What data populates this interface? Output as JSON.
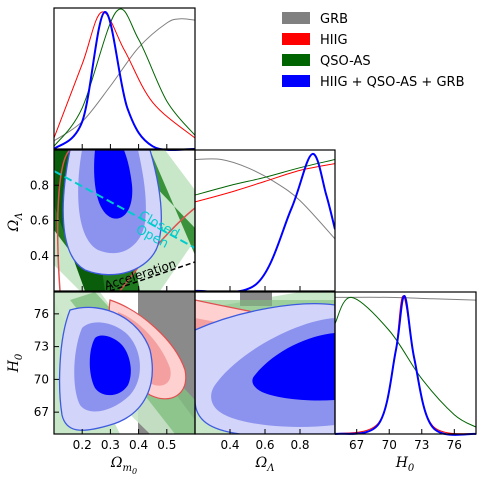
{
  "chart_data": {
    "type": "corner",
    "parameters": [
      {
        "key": "Om",
        "label": "Ω",
        "sub": "m",
        "subsub": "0",
        "range": [
          0.1,
          0.6
        ],
        "ticks": [
          0.2,
          0.3,
          0.4,
          0.5
        ]
      },
      {
        "key": "OL",
        "label": "Ω",
        "sub": "Λ",
        "range": [
          0.2,
          1.0
        ],
        "ticks": [
          0.4,
          0.6,
          0.8
        ]
      },
      {
        "key": "H0",
        "label": "H",
        "sub": "0",
        "range": [
          65,
          78
        ],
        "ticks": [
          67,
          70,
          73,
          76
        ]
      }
    ],
    "legend": {
      "position": "top-right",
      "entries": [
        {
          "name": "GRB",
          "color": "#808080"
        },
        {
          "name": "HIIG",
          "color": "#ff0000"
        },
        {
          "name": "QSO-AS",
          "color": "#006400"
        },
        {
          "name": "HIIG + QSO-AS + GRB",
          "color": "#0000ff"
        }
      ]
    },
    "series": [
      {
        "name": "GRB",
        "color": "#808080",
        "Om_pdf": [
          [
            0.1,
            0.06
          ],
          [
            0.2,
            0.2
          ],
          [
            0.3,
            0.46
          ],
          [
            0.4,
            0.74
          ],
          [
            0.5,
            0.92
          ],
          [
            0.55,
            0.95
          ],
          [
            0.6,
            0.94
          ]
        ],
        "OL_pdf": [
          [
            0.2,
            0.96
          ],
          [
            0.35,
            0.96
          ],
          [
            0.5,
            0.9
          ],
          [
            0.65,
            0.8
          ],
          [
            0.8,
            0.66
          ],
          [
            1.0,
            0.38
          ]
        ],
        "H0_pdf": [
          [
            65,
            0.99
          ],
          [
            70,
            0.99
          ],
          [
            74,
            0.98
          ],
          [
            78,
            0.97
          ]
        ]
      },
      {
        "name": "HIIG",
        "color": "#ff0000",
        "Om_pdf": [
          [
            0.1,
            0.08
          ],
          [
            0.2,
            0.62
          ],
          [
            0.27,
            1.0
          ],
          [
            0.35,
            0.72
          ],
          [
            0.45,
            0.34
          ],
          [
            0.6,
            0.08
          ]
        ],
        "OL_pdf": [
          [
            0.2,
            0.65
          ],
          [
            0.4,
            0.72
          ],
          [
            0.6,
            0.8
          ],
          [
            0.8,
            0.88
          ],
          [
            1.0,
            0.93
          ]
        ],
        "H0_pdf": [
          [
            65,
            0.0
          ],
          [
            69,
            0.08
          ],
          [
            70.5,
            0.55
          ],
          [
            71.3,
            1.0
          ],
          [
            72.4,
            0.5
          ],
          [
            74,
            0.06
          ],
          [
            78,
            0.0
          ]
        ]
      },
      {
        "name": "QSO-AS",
        "color": "#006400",
        "Om_pdf": [
          [
            0.1,
            0.02
          ],
          [
            0.2,
            0.3
          ],
          [
            0.32,
            1.0
          ],
          [
            0.4,
            0.8
          ],
          [
            0.5,
            0.35
          ],
          [
            0.6,
            0.1
          ]
        ],
        "OL_pdf": [
          [
            0.2,
            0.7
          ],
          [
            0.4,
            0.77
          ],
          [
            0.6,
            0.83
          ],
          [
            0.8,
            0.9
          ],
          [
            1.0,
            0.96
          ]
        ],
        "H0_pdf": [
          [
            65,
            0.8
          ],
          [
            66.5,
            0.99
          ],
          [
            70,
            0.75
          ],
          [
            73,
            0.4
          ],
          [
            76,
            0.14
          ],
          [
            78,
            0.05
          ]
        ]
      },
      {
        "name": "HIIG + QSO-AS + GRB",
        "color": "#0000ff",
        "Om_pdf": [
          [
            0.1,
            0.0
          ],
          [
            0.2,
            0.2
          ],
          [
            0.28,
            1.0
          ],
          [
            0.36,
            0.3
          ],
          [
            0.45,
            0.02
          ],
          [
            0.6,
            0.0
          ]
        ],
        "OL_pdf": [
          [
            0.2,
            0.0
          ],
          [
            0.55,
            0.05
          ],
          [
            0.75,
            0.6
          ],
          [
            0.87,
            1.0
          ],
          [
            0.95,
            0.7
          ],
          [
            1.0,
            0.45
          ]
        ],
        "H0_pdf": [
          [
            65,
            0.0
          ],
          [
            69,
            0.07
          ],
          [
            70.6,
            0.6
          ],
          [
            71.4,
            1.0
          ],
          [
            72.3,
            0.55
          ],
          [
            74,
            0.05
          ],
          [
            78,
            0.0
          ]
        ]
      }
    ],
    "annotations": [
      {
        "text": "Closed",
        "color": "#00cccc",
        "line": [
          [
            0.1,
            0.93
          ],
          [
            0.6,
            0.38
          ]
        ]
      },
      {
        "text": "Open",
        "color": "#00cccc"
      },
      {
        "text": "Acceleration",
        "color": "#000000",
        "line": [
          [
            0.3,
            0.2
          ],
          [
            0.6,
            0.35
          ]
        ]
      }
    ]
  }
}
